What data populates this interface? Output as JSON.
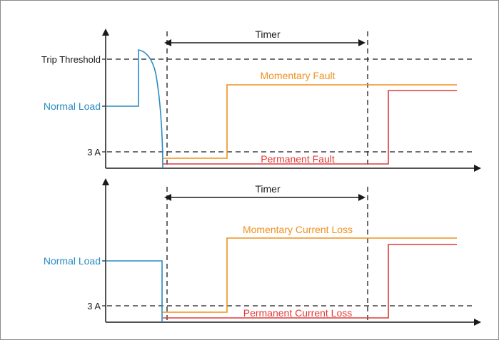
{
  "top": {
    "trip_threshold": "Trip Threshold",
    "normal_load": "Normal Load",
    "three_a": "3 A",
    "timer": "Timer",
    "momentary": "Momentary Fault",
    "permanent": "Permanent Fault"
  },
  "bottom": {
    "normal_load": "Normal Load",
    "three_a": "3 A",
    "timer": "Timer",
    "momentary": "Momentary Current Loss",
    "permanent": "Permanent Current Loss"
  },
  "colors": {
    "blue": "#2a8ac4",
    "orange": "#f0901c",
    "red": "#e03a3a",
    "axis": "#1a1a1a"
  }
}
